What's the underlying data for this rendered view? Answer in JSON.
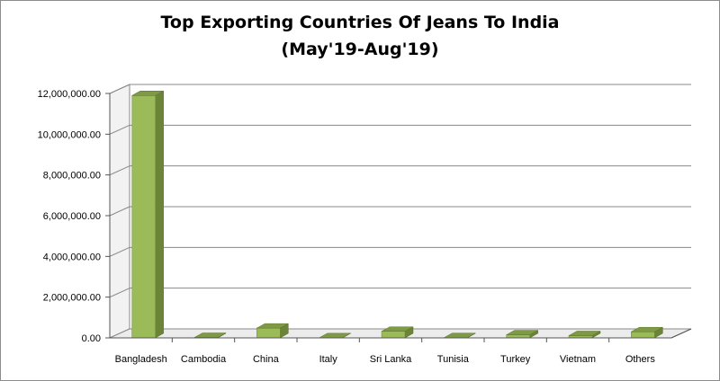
{
  "chart_data": {
    "type": "bar",
    "title": "Top Exporting Countries Of Jeans To India",
    "subtitle": "(May'19-Aug'19)",
    "xlabel": "",
    "ylabel": "",
    "categories": [
      "Bangladesh",
      "Cambodia",
      "China",
      "Italy",
      "Sri Lanka",
      "Tunisia",
      "Turkey",
      "Vietnam",
      "Others"
    ],
    "values": [
      11900000,
      20000,
      480000,
      5000,
      320000,
      10000,
      150000,
      110000,
      300000
    ],
    "ylim": [
      0,
      12000000
    ],
    "yticks": [
      "0.00",
      "2,000,000.00",
      "4,000,000.00",
      "6,000,000.00",
      "8,000,000.00",
      "10,000,000.00",
      "12,000,000.00"
    ],
    "grid": true,
    "legend": "none",
    "bar_color": "#9bbb59",
    "bar_top_color": "#7f9a44",
    "bar_side_color": "#6b8437"
  }
}
